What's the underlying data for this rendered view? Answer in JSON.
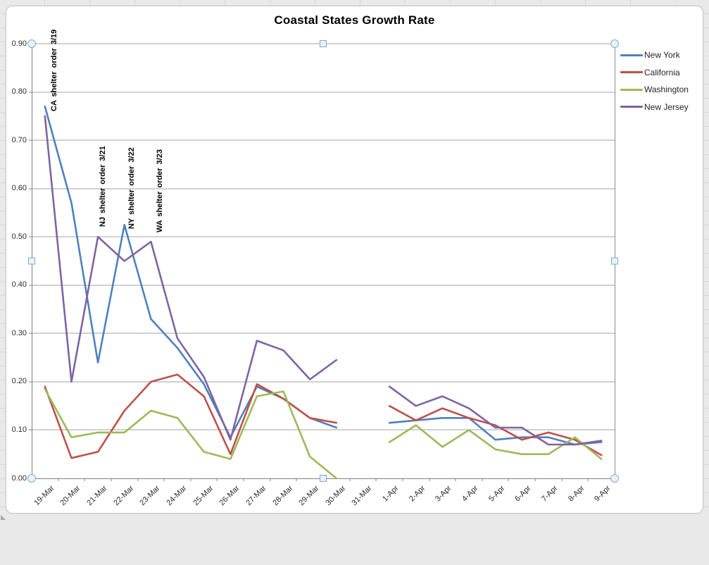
{
  "chart_data": {
    "type": "line",
    "title": "Coastal States Growth Rate",
    "categories": [
      "19-Mar",
      "20-Mar",
      "21-Mar",
      "22-Mar",
      "23-Mar",
      "24-Mar",
      "25-Mar",
      "26-Mar",
      "27-Mar",
      "28-Mar",
      "29-Mar",
      "30-Mar",
      "31-Mar",
      "1-Apr",
      "2-Apr",
      "3-Apr",
      "4-Apr",
      "5-Apr",
      "6-Apr",
      "7-Apr",
      "8-Apr",
      "9-Apr"
    ],
    "series": [
      {
        "name": "New York",
        "color": "#4F81BD",
        "values": [
          0.77,
          0.57,
          0.24,
          0.525,
          0.33,
          0.27,
          0.195,
          0.085,
          0.19,
          0.165,
          0.125,
          0.105,
          null,
          0.115,
          0.12,
          0.125,
          0.125,
          0.08,
          0.085,
          0.085,
          0.07,
          0.075
        ]
      },
      {
        "name": "California",
        "color": "#C0504D",
        "values": [
          0.19,
          0.042,
          0.055,
          0.14,
          0.2,
          0.215,
          0.17,
          0.05,
          0.195,
          0.165,
          0.125,
          0.115,
          null,
          0.15,
          0.12,
          0.145,
          0.125,
          0.11,
          0.08,
          0.095,
          0.08,
          0.048
        ]
      },
      {
        "name": "Washington",
        "color": "#9BBB59",
        "values": [
          0.185,
          0.085,
          0.095,
          0.095,
          0.14,
          0.125,
          0.055,
          0.04,
          0.17,
          0.18,
          0.045,
          0.0,
          null,
          0.075,
          0.11,
          0.065,
          0.1,
          0.06,
          0.05,
          0.05,
          0.085,
          0.04
        ]
      },
      {
        "name": "New Jersey",
        "color": "#8064A2",
        "values": [
          0.75,
          0.2,
          0.5,
          0.45,
          0.49,
          0.29,
          0.21,
          0.08,
          0.285,
          0.265,
          0.205,
          0.245,
          null,
          0.19,
          0.15,
          0.17,
          0.145,
          0.105,
          0.105,
          0.07,
          0.07,
          0.078
        ]
      }
    ],
    "ylim": [
      0,
      0.9
    ],
    "y_tick_step": 0.1,
    "grid": true,
    "legend_position": "right",
    "gap_category": "31-Mar"
  },
  "chart": {
    "y_axis": {
      "labels": [
        "0.90",
        "0.80",
        "0.70",
        "0.60",
        "0.50",
        "0.40",
        "0.30",
        "0.20",
        "0.10",
        "0.00"
      ]
    },
    "annotations": [
      {
        "text": "CA shelter order 3/19"
      },
      {
        "text": "NJ shelter order 3/21"
      },
      {
        "text": "NY shelter order 3/22"
      },
      {
        "text": "WA shelter order 3/23"
      }
    ]
  },
  "colors": {
    "gridline": "#A3A3A3",
    "axis": "#7F7F7F",
    "plot_border": "#8C8C8C",
    "handle_fill": "#E6F3F9",
    "handle_stroke": "#86A9C2",
    "chart_bg": "#FFFFFF",
    "worksheet_bg": "#E9E9E9",
    "text": "#2B2B2B"
  }
}
